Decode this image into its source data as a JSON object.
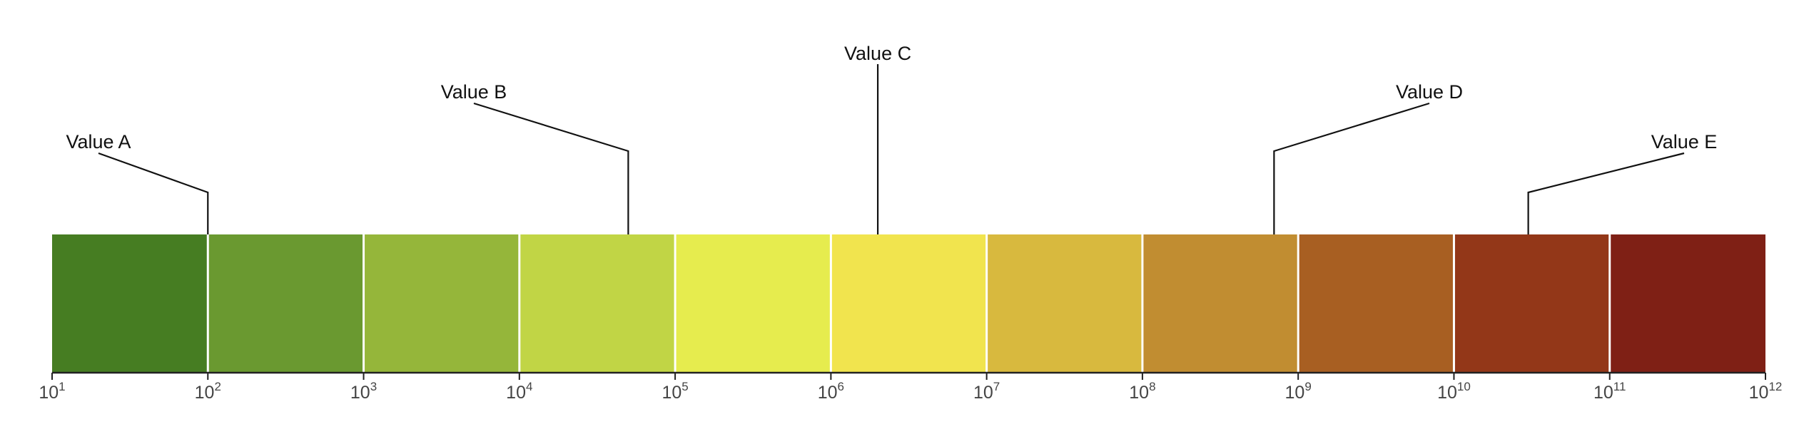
{
  "chart_data": {
    "type": "bar",
    "scale": "log10",
    "xlim": [
      10.0,
      1000000000000.0
    ],
    "tick_labels": [
      {
        "base": "10",
        "exp": "1"
      },
      {
        "base": "10",
        "exp": "2"
      },
      {
        "base": "10",
        "exp": "3"
      },
      {
        "base": "10",
        "exp": "4"
      },
      {
        "base": "10",
        "exp": "5"
      },
      {
        "base": "10",
        "exp": "6"
      },
      {
        "base": "10",
        "exp": "7"
      },
      {
        "base": "10",
        "exp": "8"
      },
      {
        "base": "10",
        "exp": "9"
      },
      {
        "base": "10",
        "exp": "10"
      },
      {
        "base": "10",
        "exp": "11"
      },
      {
        "base": "10",
        "exp": "12"
      }
    ],
    "segments": [
      {
        "from": 10.0,
        "to": 100.0,
        "color": "#467d22"
      },
      {
        "from": 100.0,
        "to": 1000.0,
        "color": "#6a9930"
      },
      {
        "from": 1000.0,
        "to": 10000.0,
        "color": "#95b63a"
      },
      {
        "from": 10000.0,
        "to": 100000.0,
        "color": "#c1d545"
      },
      {
        "from": 100000.0,
        "to": 1000000.0,
        "color": "#e6ec4e"
      },
      {
        "from": 1000000.0,
        "to": 10000000.0,
        "color": "#f1e44e"
      },
      {
        "from": 10000000.0,
        "to": 100000000.0,
        "color": "#d8b93e"
      },
      {
        "from": 100000000.0,
        "to": 1000000000.0,
        "color": "#c18d31"
      },
      {
        "from": 1000000000.0,
        "to": 10000000000.0,
        "color": "#a85f22"
      },
      {
        "from": 10000000000.0,
        "to": 100000000000.0,
        "color": "#933718"
      },
      {
        "from": 100000000000.0,
        "to": 1000000000000.0,
        "color": "#7f2015"
      }
    ],
    "annotations": [
      {
        "label": "Value A",
        "value": 100.0
      },
      {
        "label": "Value B",
        "value": 50000.0
      },
      {
        "label": "Value C",
        "value": 2000000.0
      },
      {
        "label": "Value D",
        "value": 700000000.0
      },
      {
        "label": "Value E",
        "value": 30000000000.0
      }
    ],
    "grid": false,
    "legend": "none"
  }
}
